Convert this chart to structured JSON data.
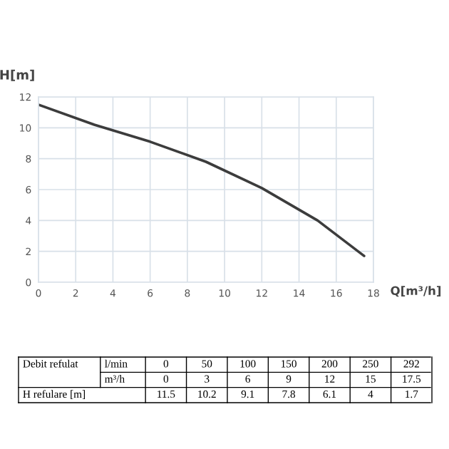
{
  "chart_data": {
    "type": "line",
    "xlabel": "Q[m³/h]",
    "ylabel": "H[m]",
    "x": [
      0,
      3,
      6,
      9,
      12,
      15,
      17.5
    ],
    "series": [
      {
        "color": "#3c3c3c",
        "values": [
          11.5,
          10.2,
          9.1,
          7.8,
          6.1,
          4,
          1.7
        ]
      }
    ],
    "xlim": [
      0,
      18
    ],
    "xticks": [
      0,
      2,
      4,
      6,
      8,
      10,
      12,
      14,
      16,
      18
    ],
    "ylim": [
      0,
      12
    ],
    "yticks": [
      0,
      2,
      4,
      6,
      8,
      10,
      12
    ],
    "grid": true,
    "annotations": [
      "Debit refulat",
      "l/min",
      "m³/h",
      "H refulare [m]",
      "0",
      "50",
      "100",
      "150",
      "200",
      "250",
      "292",
      "0",
      "3",
      "6",
      "9",
      "12",
      "15",
      "17.5",
      "11.5",
      "10.2",
      "9.1",
      "7.8",
      "6.1",
      "4",
      "1.7"
    ]
  }
}
